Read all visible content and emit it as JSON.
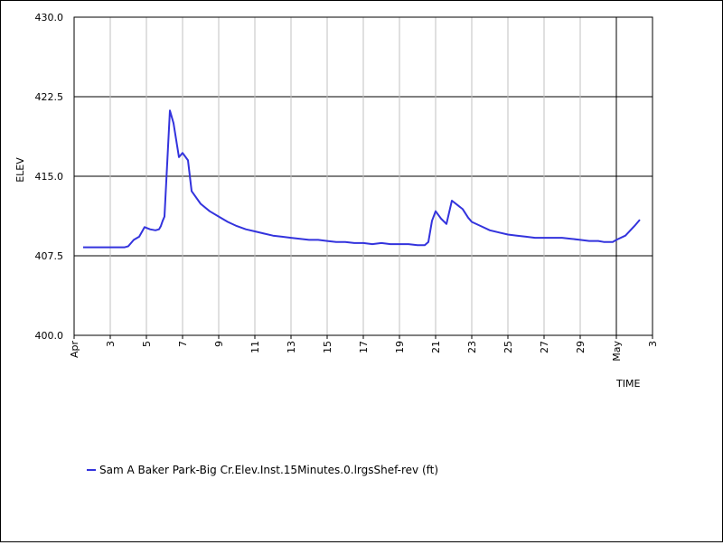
{
  "chart_data": {
    "type": "line",
    "title": "",
    "xlabel": "TIME",
    "ylabel": "ELEV",
    "ylim": [
      400,
      430
    ],
    "yticks": [
      400.0,
      407.5,
      415.0,
      422.5,
      430.0
    ],
    "ytick_labels": [
      "400.0",
      "407.5",
      "415.0",
      "422.5",
      "430.0"
    ],
    "xlim": [
      0,
      32
    ],
    "xticks": [
      {
        "x": 0,
        "label": "Apr"
      },
      {
        "x": 2,
        "label": "3"
      },
      {
        "x": 4,
        "label": "5"
      },
      {
        "x": 6,
        "label": "7"
      },
      {
        "x": 8,
        "label": "9"
      },
      {
        "x": 10,
        "label": "11"
      },
      {
        "x": 12,
        "label": "13"
      },
      {
        "x": 14,
        "label": "15"
      },
      {
        "x": 16,
        "label": "17"
      },
      {
        "x": 18,
        "label": "19"
      },
      {
        "x": 20,
        "label": "21"
      },
      {
        "x": 22,
        "label": "23"
      },
      {
        "x": 24,
        "label": "25"
      },
      {
        "x": 26,
        "label": "27"
      },
      {
        "x": 28,
        "label": "29"
      },
      {
        "x": 30,
        "label": "May"
      },
      {
        "x": 32,
        "label": "3"
      }
    ],
    "grid": true,
    "legend": "bottom-left",
    "series": [
      {
        "name": "Sam A Baker Park-Big Cr.Elev.Inst.15Minutes.0.lrgsShef-rev (ft)",
        "color": "#3333dd",
        "x": [
          0.5,
          1.0,
          1.5,
          2.0,
          2.3,
          2.5,
          2.8,
          3.0,
          3.3,
          3.6,
          3.9,
          4.2,
          4.5,
          4.7,
          4.8,
          4.9,
          5.0,
          5.3,
          5.5,
          5.8,
          6.0,
          6.3,
          6.5,
          7.0,
          7.5,
          8.0,
          8.5,
          9.0,
          9.5,
          10.0,
          10.5,
          11.0,
          11.5,
          12.0,
          12.5,
          13.0,
          13.5,
          14.0,
          14.5,
          15.0,
          15.5,
          16.0,
          16.5,
          17.0,
          17.5,
          18.0,
          18.5,
          19.0,
          19.2,
          19.4,
          19.6,
          19.8,
          20.0,
          20.3,
          20.6,
          20.9,
          21.2,
          21.5,
          21.8,
          22.0,
          22.5,
          23.0,
          23.5,
          24.0,
          24.5,
          25.0,
          25.5,
          26.0,
          26.5,
          27.0,
          27.5,
          28.0,
          28.5,
          29.0,
          29.3,
          29.6,
          29.8,
          30.0,
          30.5,
          31.0,
          31.3
        ],
        "values": [
          408.3,
          408.3,
          408.3,
          408.3,
          408.3,
          408.3,
          408.3,
          408.4,
          409.0,
          409.3,
          410.2,
          410.0,
          409.9,
          410.0,
          410.3,
          410.8,
          411.2,
          421.2,
          420.0,
          416.8,
          417.2,
          416.5,
          413.6,
          412.4,
          411.7,
          411.2,
          410.7,
          410.3,
          410.0,
          409.8,
          409.6,
          409.4,
          409.3,
          409.2,
          409.1,
          409.0,
          409.0,
          408.9,
          408.8,
          408.8,
          408.7,
          408.7,
          408.6,
          408.7,
          408.6,
          408.6,
          408.6,
          408.5,
          408.5,
          408.5,
          408.8,
          410.8,
          411.7,
          411.0,
          410.5,
          412.7,
          412.3,
          411.9,
          411.1,
          410.7,
          410.3,
          409.9,
          409.7,
          409.5,
          409.4,
          409.3,
          409.2,
          409.2,
          409.2,
          409.2,
          409.1,
          409.0,
          408.9,
          408.9,
          408.8,
          408.8,
          408.8,
          409.0,
          409.4,
          410.3,
          410.9
        ]
      }
    ]
  }
}
